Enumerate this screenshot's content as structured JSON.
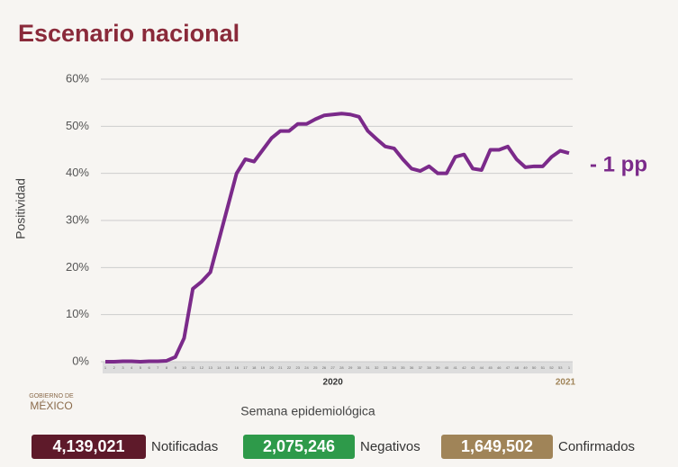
{
  "chart_data": {
    "type": "line",
    "title": "Escenario nacional",
    "y_label": "Positividad",
    "x_label": "Semana epidemiológica",
    "categories": [
      "1",
      "2",
      "3",
      "4",
      "5",
      "6",
      "7",
      "8",
      "9",
      "10",
      "11",
      "12",
      "13",
      "14",
      "15",
      "16",
      "17",
      "18",
      "19",
      "20",
      "21",
      "22",
      "23",
      "24",
      "25",
      "26",
      "27",
      "28",
      "29",
      "30",
      "31",
      "32",
      "33",
      "34",
      "35",
      "36",
      "37",
      "38",
      "39",
      "40",
      "41",
      "42",
      "43",
      "44",
      "45",
      "46",
      "47",
      "48",
      "49",
      "50",
      "51",
      "52",
      "53",
      "1"
    ],
    "years": [
      "2020",
      "2021"
    ],
    "series": [
      {
        "name": "Positividad",
        "color": "#7b2a8a",
        "values": [
          0,
          0,
          0.1,
          0.1,
          0,
          0.1,
          0.1,
          0.2,
          1,
          5,
          15.5,
          17,
          19,
          26,
          33,
          40,
          43,
          42.5,
          45,
          47.5,
          49,
          49,
          50.5,
          50.5,
          51.5,
          52.3,
          52.5,
          52.7,
          52.5,
          52,
          49,
          47.3,
          45.7,
          45.3,
          43,
          41,
          40.5,
          41.5,
          40,
          40,
          43.5,
          44,
          41,
          40.7,
          45,
          45,
          45.7,
          43,
          41.3,
          41.5,
          41.5,
          43.5,
          44.8,
          44.3
        ]
      }
    ],
    "annotation": "- 1 pp",
    "ylim": [
      0,
      60
    ],
    "yticks": [
      {
        "value": 0,
        "label": "0%"
      },
      {
        "value": 10,
        "label": "10%"
      },
      {
        "value": 20,
        "label": "20%"
      },
      {
        "value": 30,
        "label": "30%"
      },
      {
        "value": 40,
        "label": "40%"
      },
      {
        "value": 50,
        "label": "50%"
      },
      {
        "value": 60,
        "label": "60%"
      }
    ],
    "grid": true
  },
  "logo": [
    "GOBIERNO DE",
    "MÉXICO"
  ],
  "stats": [
    {
      "value": "4,139,021",
      "label": "Notificadas",
      "color": "#5e1a2a"
    },
    {
      "value": "2,075,246",
      "label": "Negativos",
      "color": "#2e9a4a"
    },
    {
      "value": "1,649,502",
      "label": "Confirmados",
      "color": "#a08458"
    }
  ]
}
